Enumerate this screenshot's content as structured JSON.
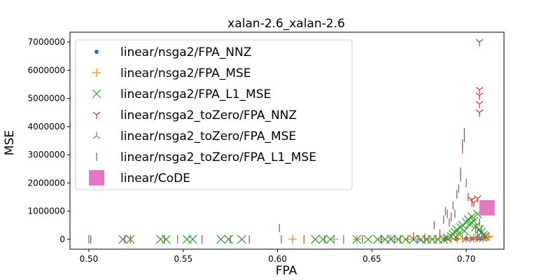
{
  "chart_data": {
    "type": "scatter",
    "title": "xalan-2.6_xalan-2.6",
    "xlabel": "FPA",
    "ylabel": "MSE",
    "xlim": [
      0.49,
      0.72
    ],
    "ylim": [
      -350000,
      7350000
    ],
    "xticks": [
      0.5,
      0.55,
      0.6,
      0.65,
      0.7
    ],
    "xtick_labels": [
      "0.50",
      "0.55",
      "0.60",
      "0.65",
      "0.70"
    ],
    "yticks": [
      0,
      1000000,
      2000000,
      3000000,
      4000000,
      5000000,
      6000000,
      7000000
    ],
    "ytick_labels": [
      "0",
      "1000000",
      "2000000",
      "3000000",
      "4000000",
      "5000000",
      "6000000",
      "7000000"
    ],
    "grid": false,
    "legend_position": "top-left",
    "series": [
      {
        "name": "linear/nsga2/FPA_NNZ",
        "marker": "point",
        "color": "#1f77b4",
        "points": [
          [
            0.689,
            20000
          ],
          [
            0.695,
            15000
          ],
          [
            0.7,
            30000
          ],
          [
            0.703,
            25000
          ],
          [
            0.706,
            40000
          ],
          [
            0.708,
            30000
          ]
        ]
      },
      {
        "name": "linear/nsga2/FPA_MSE",
        "marker": "plus",
        "color": "#ff7f0e",
        "points": [
          [
            0.608,
            5000
          ],
          [
            0.63,
            3000
          ],
          [
            0.642,
            4000
          ],
          [
            0.655,
            3000
          ],
          [
            0.662,
            5000
          ],
          [
            0.669,
            4000
          ],
          [
            0.674,
            8000
          ],
          [
            0.68,
            6000
          ],
          [
            0.684,
            9000
          ],
          [
            0.688,
            12000
          ],
          [
            0.692,
            10000
          ],
          [
            0.695,
            15000
          ],
          [
            0.698,
            18000
          ],
          [
            0.7,
            25000
          ],
          [
            0.702,
            22000
          ],
          [
            0.704,
            30000
          ],
          [
            0.705,
            40000
          ],
          [
            0.706,
            60000
          ],
          [
            0.707,
            50000
          ],
          [
            0.708,
            80000
          ],
          [
            0.709,
            45000
          ],
          [
            0.71,
            90000
          ],
          [
            0.711,
            70000
          ],
          [
            0.712,
            110000
          ]
        ]
      },
      {
        "name": "linear/nsga2/FPA_L1_MSE",
        "marker": "x",
        "color": "#2ca02c",
        "points": [
          [
            0.518,
            0
          ],
          [
            0.522,
            0
          ],
          [
            0.538,
            0
          ],
          [
            0.541,
            0
          ],
          [
            0.552,
            0
          ],
          [
            0.555,
            0
          ],
          [
            0.57,
            0
          ],
          [
            0.574,
            0
          ],
          [
            0.581,
            0
          ],
          [
            0.62,
            0
          ],
          [
            0.624,
            0
          ],
          [
            0.628,
            0
          ],
          [
            0.642,
            0
          ],
          [
            0.648,
            0
          ],
          [
            0.653,
            0
          ],
          [
            0.657,
            0
          ],
          [
            0.66,
            0
          ],
          [
            0.664,
            0
          ],
          [
            0.668,
            0
          ],
          [
            0.672,
            0
          ],
          [
            0.676,
            0
          ],
          [
            0.679,
            0
          ],
          [
            0.682,
            0
          ],
          [
            0.685,
            0
          ],
          [
            0.688,
            0
          ],
          [
            0.69,
            50000
          ],
          [
            0.692,
            100000
          ],
          [
            0.693,
            180000
          ],
          [
            0.694,
            250000
          ],
          [
            0.695,
            350000
          ],
          [
            0.696,
            200000
          ],
          [
            0.697,
            420000
          ],
          [
            0.698,
            500000
          ],
          [
            0.699,
            300000
          ],
          [
            0.7,
            600000
          ],
          [
            0.701,
            700000
          ],
          [
            0.702,
            550000
          ],
          [
            0.703,
            800000
          ],
          [
            0.704,
            650000
          ],
          [
            0.705,
            450000
          ],
          [
            0.706,
            900000
          ],
          [
            0.707,
            350000
          ],
          [
            0.708,
            250000
          ],
          [
            0.709,
            150000
          ],
          [
            0.71,
            100000
          ]
        ]
      },
      {
        "name": "linear/nsga2_toZero/FPA_NNZ",
        "marker": "tri_down",
        "color": "#d62728",
        "points": [
          [
            0.703,
            1400000
          ],
          [
            0.704,
            1300000
          ],
          [
            0.706,
            1450000
          ],
          [
            0.707,
            4500000
          ],
          [
            0.707,
            4800000
          ],
          [
            0.707,
            5100000
          ],
          [
            0.707,
            5300000
          ],
          [
            0.707,
            7000000
          ]
        ]
      },
      {
        "name": "linear/nsga2_toZero/FPA_MSE",
        "marker": "tri_up",
        "color": "#9467bd",
        "points": [
          [
            0.66,
            5000
          ],
          [
            0.675,
            8000
          ],
          [
            0.69,
            10000
          ],
          [
            0.7,
            20000
          ],
          [
            0.704,
            40000
          ],
          [
            0.707,
            60000
          ],
          [
            0.709,
            30000
          ]
        ]
      },
      {
        "name": "linear/nsga2_toZero/FPA_L1_MSE",
        "marker": "vline",
        "color": "#8c564b",
        "points": [
          [
            0.5,
            0
          ],
          [
            0.501,
            0
          ],
          [
            0.519,
            0
          ],
          [
            0.522,
            0
          ],
          [
            0.54,
            0
          ],
          [
            0.547,
            0
          ],
          [
            0.56,
            0
          ],
          [
            0.575,
            0
          ],
          [
            0.585,
            0
          ],
          [
            0.601,
            400000
          ],
          [
            0.602,
            0
          ],
          [
            0.614,
            0
          ],
          [
            0.625,
            0
          ],
          [
            0.635,
            0
          ],
          [
            0.645,
            0
          ],
          [
            0.655,
            0
          ],
          [
            0.665,
            0
          ],
          [
            0.672,
            100000
          ],
          [
            0.678,
            50000
          ],
          [
            0.683,
            500000
          ],
          [
            0.686,
            200000
          ],
          [
            0.688,
            700000
          ],
          [
            0.689,
            1000000
          ],
          [
            0.69,
            900000
          ],
          [
            0.691,
            600000
          ],
          [
            0.692,
            800000
          ],
          [
            0.693,
            1200000
          ],
          [
            0.694,
            900000
          ],
          [
            0.695,
            1600000
          ],
          [
            0.696,
            1800000
          ],
          [
            0.697,
            2200000
          ],
          [
            0.697,
            2400000
          ],
          [
            0.698,
            3200000
          ],
          [
            0.698,
            3400000
          ],
          [
            0.699,
            3600000
          ],
          [
            0.699,
            3800000
          ],
          [
            0.7,
            2000000
          ],
          [
            0.701,
            1500000
          ],
          [
            0.703,
            1300000
          ],
          [
            0.705,
            400000
          ],
          [
            0.706,
            200000
          ],
          [
            0.707,
            600000
          ],
          [
            0.708,
            350000
          ],
          [
            0.71,
            100000
          ]
        ]
      },
      {
        "name": "linear/CoDE",
        "marker": "square",
        "color": "#e377c2",
        "points": [
          [
            0.711,
            1120000
          ]
        ]
      }
    ]
  }
}
